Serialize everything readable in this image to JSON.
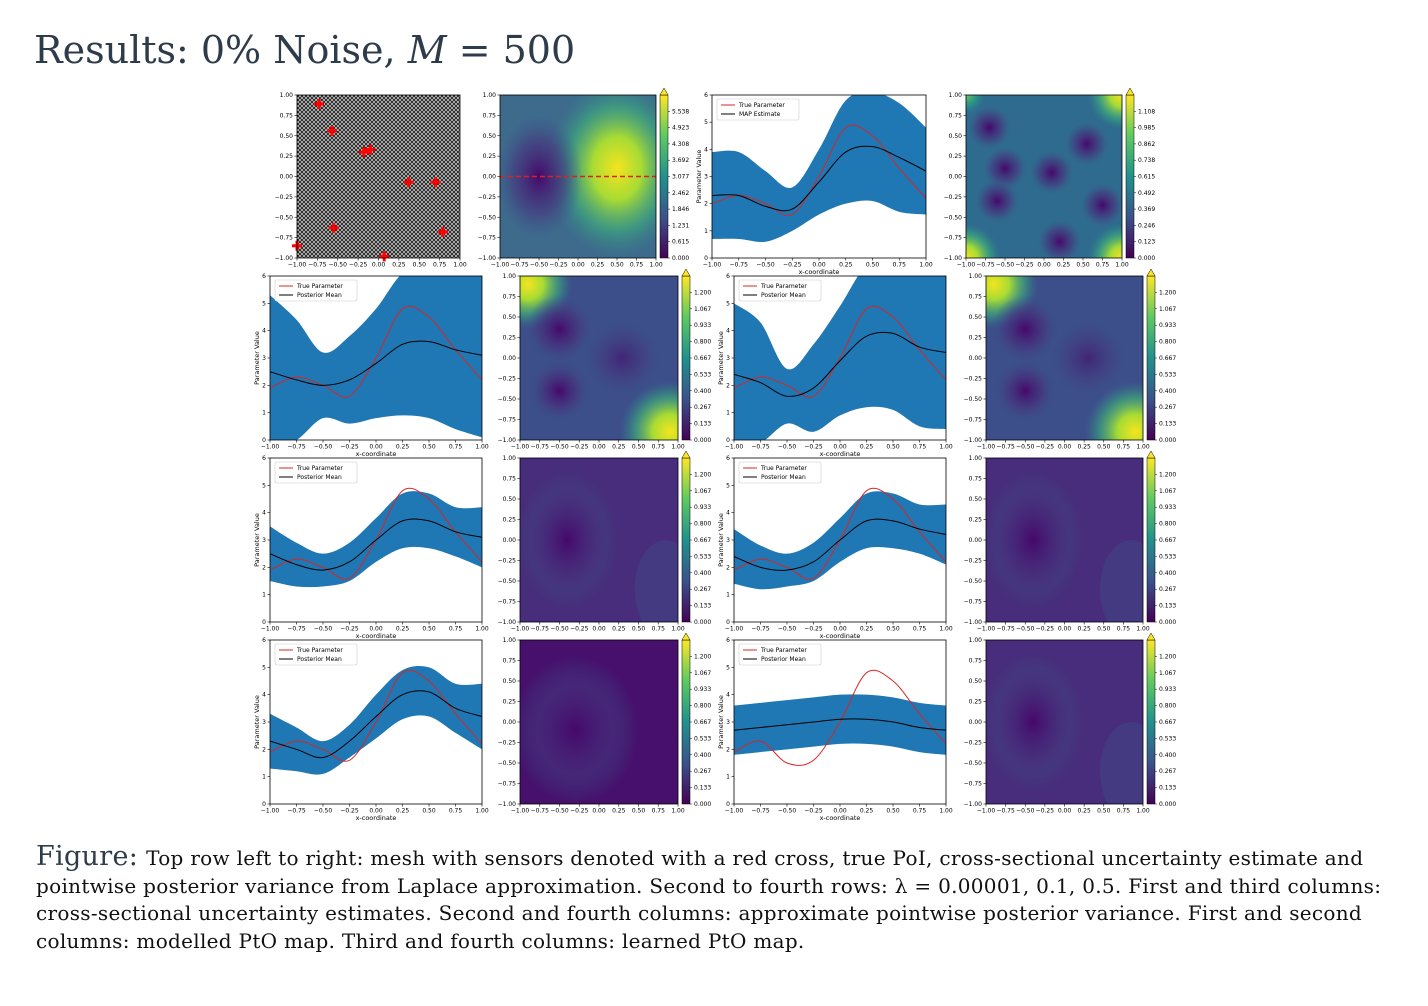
{
  "slide": {
    "title_prefix": "Results: 0% Noise,",
    "title_var": "M",
    "title_eq": " = 500"
  },
  "caption": {
    "label": "Figure:",
    "text": "Top row left to right: mesh with sensors denoted with a red cross, true PoI, cross-sectional uncertainty estimate and pointwise posterior variance from Laplace approximation. Second to fourth rows: λ = 0.00001, 0.1, 0.5. First and third columns: cross-sectional uncertainty estimates. Second and fourth columns: approximate pointwise posterior variance. First and second columns: modelled PtO map. Third and fourth columns: learned PtO map."
  },
  "axes": {
    "ticks": [
      "−1.00",
      "−0.75",
      "−0.50",
      "−0.25",
      "0.00",
      "0.25",
      "0.50",
      "0.75",
      "1.00"
    ],
    "y_ticks_line": [
      "0",
      "1",
      "2",
      "3",
      "4",
      "5",
      "6"
    ],
    "xlabel": "x-coordinate",
    "ylabel": "Parameter Value"
  },
  "colors": {
    "band": "#1f77b4",
    "true_line": "#d62728",
    "mean_line": "#000000",
    "sensor": "#ff0000"
  },
  "colorbars": {
    "poi": [
      "0.000",
      "0.615",
      "1.231",
      "1.846",
      "2.462",
      "3.077",
      "3.692",
      "4.308",
      "4.923",
      "5.538"
    ],
    "laplace_var": [
      "0.000",
      "0.123",
      "0.246",
      "0.369",
      "0.492",
      "0.615",
      "0.738",
      "0.862",
      "0.985",
      "1.108"
    ],
    "variance": [
      "0.000",
      "0.133",
      "0.267",
      "0.400",
      "0.533",
      "0.667",
      "0.800",
      "0.933",
      "1.067",
      "1.200"
    ]
  },
  "sensors": [
    [
      -0.73,
      0.89
    ],
    [
      -0.57,
      0.56
    ],
    [
      -0.18,
      0.3
    ],
    [
      -0.1,
      0.33
    ],
    [
      0.37,
      -0.07
    ],
    [
      0.7,
      -0.07
    ],
    [
      -0.55,
      -0.63
    ],
    [
      0.79,
      -0.68
    ],
    [
      -1.0,
      -0.85
    ],
    [
      0.07,
      -0.98
    ]
  ],
  "chart_data": [
    {
      "type": "line",
      "id": "laplace",
      "legend": [
        "True Parameter",
        "MAP Estimate"
      ],
      "xlabel": "x-coordinate",
      "ylabel": "Parameter Value",
      "xlim": [
        -1,
        1
      ],
      "ylim": [
        0,
        6
      ],
      "x": [
        -1,
        -0.75,
        -0.5,
        -0.25,
        0,
        0.25,
        0.5,
        0.75,
        1
      ],
      "series": [
        {
          "name": "True Parameter",
          "values": [
            2.0,
            2.3,
            2.0,
            1.6,
            3.0,
            4.8,
            4.5,
            3.3,
            2.2
          ]
        },
        {
          "name": "MAP Estimate",
          "values": [
            2.3,
            2.3,
            1.9,
            1.8,
            2.8,
            3.9,
            4.1,
            3.7,
            3.2
          ]
        }
      ],
      "band_width": [
        1.6,
        1.6,
        1.3,
        0.8,
        1.2,
        1.9,
        2.0,
        2.0,
        1.6
      ]
    },
    {
      "type": "line",
      "id": "row2-modelled",
      "legend": [
        "True Parameter",
        "Posterior Mean"
      ],
      "xlabel": "x-coordinate",
      "ylabel": "Parameter Value",
      "xlim": [
        -1,
        1
      ],
      "ylim": [
        0,
        6
      ],
      "x": [
        -1,
        -0.75,
        -0.5,
        -0.25,
        0,
        0.25,
        0.5,
        0.75,
        1
      ],
      "series": [
        {
          "name": "True Parameter",
          "values": [
            1.9,
            2.3,
            2.0,
            1.6,
            3.0,
            4.8,
            4.5,
            3.3,
            2.2
          ]
        },
        {
          "name": "Posterior Mean",
          "values": [
            2.5,
            2.2,
            2.0,
            2.2,
            2.8,
            3.5,
            3.6,
            3.3,
            3.1
          ]
        }
      ],
      "band_width": [
        2.8,
        2.2,
        1.2,
        1.6,
        2.0,
        2.6,
        2.8,
        2.9,
        3.0
      ]
    },
    {
      "type": "line",
      "id": "row2-learned",
      "legend": [
        "True Parameter",
        "Posterior Mean"
      ],
      "xlabel": "x-coordinate",
      "ylabel": "Parameter Value",
      "xlim": [
        -1,
        1
      ],
      "ylim": [
        0,
        6
      ],
      "x": [
        -1,
        -0.75,
        -0.5,
        -0.25,
        0,
        0.25,
        0.5,
        0.75,
        1
      ],
      "series": [
        {
          "name": "True Parameter",
          "values": [
            1.9,
            2.3,
            2.0,
            1.6,
            3.0,
            4.8,
            4.5,
            3.3,
            2.2
          ]
        },
        {
          "name": "Posterior Mean",
          "values": [
            2.4,
            2.1,
            1.6,
            1.9,
            2.9,
            3.8,
            3.9,
            3.4,
            3.2
          ]
        }
      ],
      "band_width": [
        2.6,
        2.2,
        1.0,
        1.6,
        2.0,
        2.6,
        2.8,
        2.9,
        2.8
      ]
    },
    {
      "type": "line",
      "id": "row3-modelled",
      "legend": [
        "True Parameter",
        "Posterior Mean"
      ],
      "xlabel": "x-coordinate",
      "ylabel": "Parameter Value",
      "xlim": [
        -1,
        1
      ],
      "ylim": [
        0,
        6
      ],
      "x": [
        -1,
        -0.75,
        -0.5,
        -0.25,
        0,
        0.25,
        0.5,
        0.75,
        1
      ],
      "series": [
        {
          "name": "True Parameter",
          "values": [
            1.9,
            2.3,
            2.0,
            1.6,
            3.0,
            4.8,
            4.5,
            3.3,
            2.2
          ]
        },
        {
          "name": "Posterior Mean",
          "values": [
            2.5,
            2.1,
            1.9,
            2.2,
            3.0,
            3.7,
            3.7,
            3.3,
            3.1
          ]
        }
      ],
      "band_width": [
        1.0,
        0.8,
        0.6,
        0.7,
        0.8,
        1.0,
        1.0,
        0.9,
        1.1
      ]
    },
    {
      "type": "line",
      "id": "row3-learned",
      "legend": [
        "True Parameter",
        "Posterior Mean"
      ],
      "xlabel": "x-coordinate",
      "ylabel": "Parameter Value",
      "xlim": [
        -1,
        1
      ],
      "ylim": [
        0,
        6
      ],
      "x": [
        -1,
        -0.75,
        -0.5,
        -0.25,
        0,
        0.25,
        0.5,
        0.75,
        1
      ],
      "series": [
        {
          "name": "True Parameter",
          "values": [
            1.9,
            2.3,
            2.0,
            1.6,
            3.0,
            4.8,
            4.5,
            3.3,
            2.2
          ]
        },
        {
          "name": "Posterior Mean",
          "values": [
            2.4,
            2.0,
            1.9,
            2.2,
            3.0,
            3.7,
            3.7,
            3.4,
            3.2
          ]
        }
      ],
      "band_width": [
        1.0,
        0.8,
        0.6,
        0.7,
        0.8,
        1.0,
        1.0,
        0.9,
        1.1
      ]
    },
    {
      "type": "line",
      "id": "row4-modelled",
      "legend": [
        "True Parameter",
        "Posterior Mean"
      ],
      "xlabel": "x-coordinate",
      "ylabel": "Parameter Value",
      "xlim": [
        -1,
        1
      ],
      "ylim": [
        0,
        6
      ],
      "x": [
        -1,
        -0.75,
        -0.5,
        -0.25,
        0,
        0.25,
        0.5,
        0.75,
        1
      ],
      "series": [
        {
          "name": "True Parameter",
          "values": [
            1.9,
            2.3,
            2.0,
            1.6,
            3.0,
            4.8,
            4.5,
            3.3,
            2.2
          ]
        },
        {
          "name": "Posterior Mean",
          "values": [
            2.3,
            2.0,
            1.7,
            2.3,
            3.2,
            4.0,
            4.1,
            3.5,
            3.2
          ]
        }
      ],
      "band_width": [
        1.0,
        0.8,
        0.6,
        0.6,
        0.8,
        0.9,
        0.9,
        0.9,
        1.2
      ]
    },
    {
      "type": "line",
      "id": "row4-learned",
      "legend": [
        "True Parameter",
        "Posterior Mean"
      ],
      "xlabel": "x-coordinate",
      "ylabel": "Parameter Value",
      "xlim": [
        -1,
        1
      ],
      "ylim": [
        0,
        6
      ],
      "x": [
        -1,
        -0.75,
        -0.5,
        -0.25,
        0,
        0.25,
        0.5,
        0.75,
        1
      ],
      "series": [
        {
          "name": "True Parameter",
          "values": [
            1.9,
            2.3,
            1.5,
            1.6,
            3.0,
            4.8,
            4.5,
            3.3,
            2.2
          ]
        },
        {
          "name": "Posterior Mean",
          "values": [
            2.7,
            2.8,
            2.9,
            3.0,
            3.1,
            3.1,
            3.0,
            2.8,
            2.7
          ]
        }
      ],
      "band_width": [
        0.9,
        0.9,
        0.9,
        0.9,
        0.9,
        0.9,
        0.9,
        0.9,
        0.9
      ]
    }
  ]
}
